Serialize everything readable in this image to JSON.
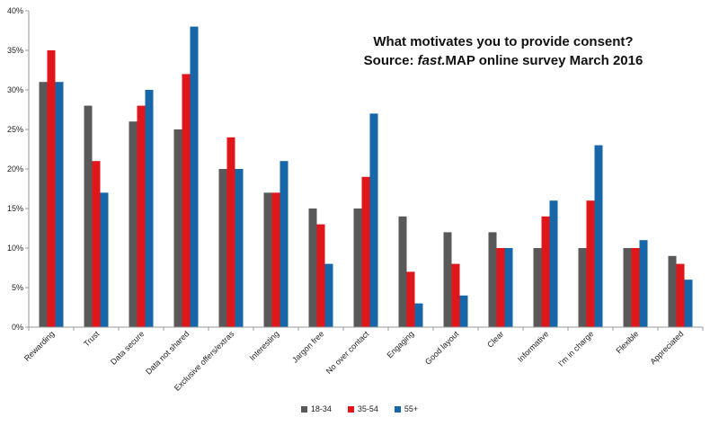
{
  "chart_data": {
    "type": "bar",
    "title_line1": "What motivates you to provide consent?",
    "title_line2_prefix": "Source: ",
    "title_line2_italic": "fast.",
    "title_line2_suffix": "MAP online survey March 2016",
    "categories": [
      "Rewarding",
      "Trust",
      "Data secure",
      "Data not shared",
      "Exclusive offers/extras",
      "Interesting",
      "Jargon free",
      "No over contact",
      "Engaging",
      "Good layout",
      "Clear",
      "Informative",
      "I'm in charge",
      "Flexible",
      "Appreciated"
    ],
    "series": [
      {
        "name": "18-34",
        "color": "#595959",
        "values": [
          31,
          28,
          26,
          25,
          20,
          17,
          15,
          15,
          14,
          12,
          12,
          10,
          10,
          10,
          9
        ]
      },
      {
        "name": "35-54",
        "color": "#e0161b",
        "values": [
          35,
          21,
          28,
          32,
          24,
          17,
          13,
          19,
          7,
          8,
          10,
          14,
          16,
          10,
          8
        ]
      },
      {
        "name": "55+",
        "color": "#1666a8",
        "values": [
          31,
          17,
          30,
          38,
          20,
          21,
          8,
          27,
          3,
          4,
          10,
          16,
          23,
          11,
          6
        ]
      }
    ],
    "yticks": [
      "0%",
      "5%",
      "10%",
      "15%",
      "20%",
      "25%",
      "30%",
      "35%",
      "40%"
    ],
    "ylim": [
      0,
      40
    ],
    "grid": false,
    "legend_position": "bottom"
  }
}
